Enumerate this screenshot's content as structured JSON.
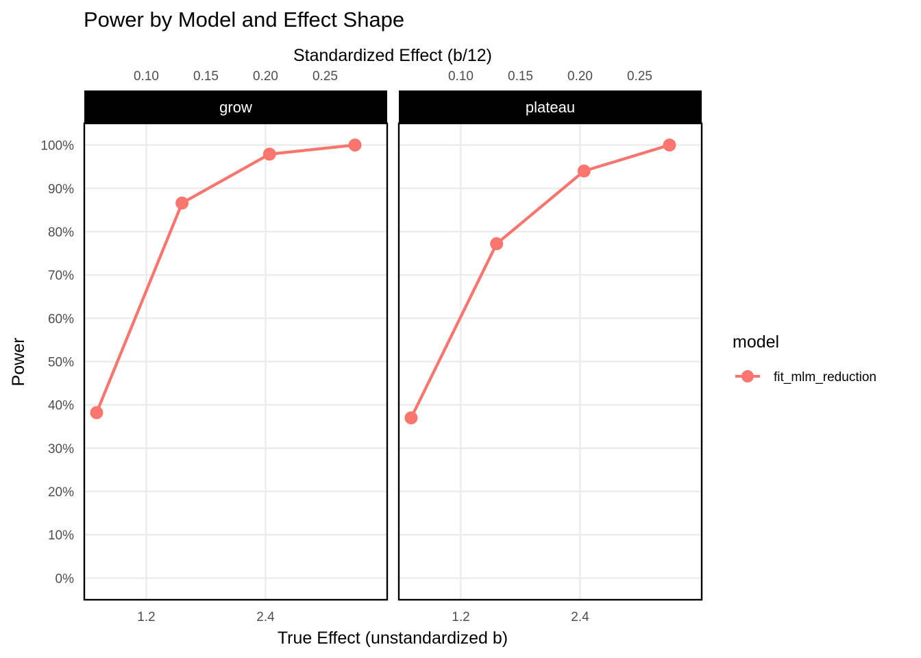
{
  "chart_data": {
    "type": "line",
    "title": "Power by Model and Effect Shape",
    "xlabel": "True Effect (unstandardized b)",
    "ylabel": "Power",
    "x2label": "Standardized Effect (b/12)",
    "xlim": [
      0.576,
      3.624
    ],
    "ylim": [
      -0.05,
      1.05
    ],
    "x_ticks": [
      1.2,
      2.4
    ],
    "x_tick_labels": [
      "1.2",
      "2.4"
    ],
    "x2_ticks": [
      1.2,
      1.8,
      2.4,
      3.0
    ],
    "x2_tick_labels": [
      "0.10",
      "0.15",
      "0.20",
      "0.25"
    ],
    "y_ticks": [
      0,
      0.1,
      0.2,
      0.3,
      0.4,
      0.5,
      0.6,
      0.7,
      0.8,
      0.9,
      1.0
    ],
    "y_tick_labels": [
      "0%",
      "10%",
      "20%",
      "30%",
      "40%",
      "50%",
      "60%",
      "70%",
      "80%",
      "90%",
      "100%"
    ],
    "grid": true,
    "legend": {
      "title": "model",
      "position": "right"
    },
    "panels": [
      {
        "label": "grow",
        "series": [
          {
            "name": "fit_mlm_reduction",
            "color": "#F8766D",
            "x": [
              0.7,
              1.56,
              2.44,
              3.3
            ],
            "y": [
              0.382,
              0.866,
              0.979,
              1.0
            ]
          }
        ]
      },
      {
        "label": "plateau",
        "series": [
          {
            "name": "fit_mlm_reduction",
            "color": "#F8766D",
            "x": [
              0.7,
              1.56,
              2.44,
              3.3
            ],
            "y": [
              0.37,
              0.772,
              0.94,
              1.0
            ]
          }
        ]
      }
    ]
  }
}
